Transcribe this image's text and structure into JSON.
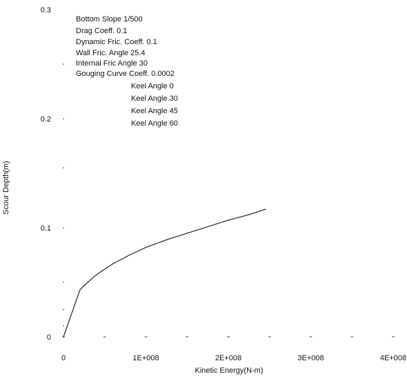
{
  "chart_data": {
    "type": "line",
    "title": "",
    "xlabel": "Kinetic Energy(N-m)",
    "ylabel": "Scour Depth(m)",
    "xlim": [
      0,
      400000000
    ],
    "ylim": [
      0,
      0.3
    ],
    "x_ticks": [
      0,
      100000000,
      200000000,
      300000000,
      400000000
    ],
    "x_tick_labels": [
      "0",
      "1E+008",
      "2E+008",
      "3E+008",
      "4E+008"
    ],
    "y_ticks": [
      0,
      0.1,
      0.2,
      0.3
    ],
    "y_tick_labels": [
      "0",
      "0.1",
      "0.2",
      "0.3"
    ],
    "grid": false,
    "legend": "none",
    "annotations": [
      "Bottom Slope 1/500",
      "Drag Coeff. 0.1",
      "Dynamic Fric. Coeff. 0.1",
      "Wall Fric. Angle 25.4",
      "Internal Fric Angle 30",
      "Gouging Curve Coeff. 0.0002",
      "Keel Angle 0",
      "Keel Angle 30",
      "Keel Angle 45",
      "Keel Angle 60"
    ],
    "series": [
      {
        "x": [
          0,
          20000000,
          25000000,
          40000000,
          60000000,
          80000000,
          100000000,
          125000000,
          150000000,
          175000000,
          200000000,
          225000000,
          245000000
        ],
        "y": [
          0.0,
          0.043,
          0.047,
          0.057,
          0.067,
          0.075,
          0.082,
          0.089,
          0.095,
          0.101,
          0.107,
          0.112,
          0.117
        ]
      }
    ],
    "colors": {
      "line": "#222222",
      "text": "#111111",
      "background": "#ffffff"
    }
  }
}
